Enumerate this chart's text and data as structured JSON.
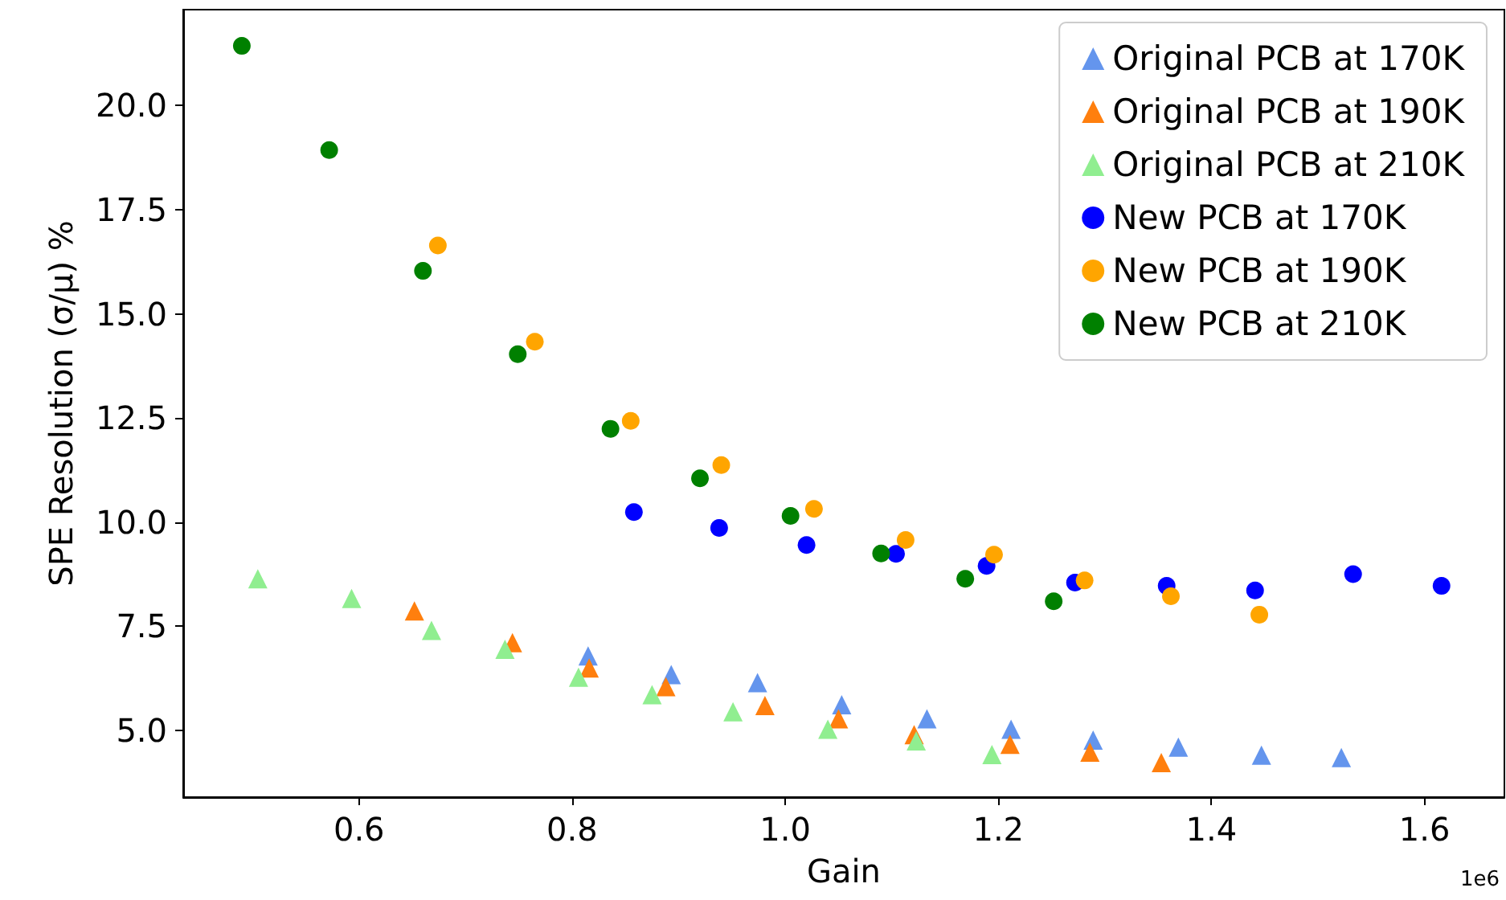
{
  "chart_data": {
    "type": "scatter",
    "xlabel": "Gain",
    "ylabel": "SPE Resolution (σ/μ) %",
    "annotations": [
      "1e6"
    ],
    "xlim": [
      0.435,
      1.675
    ],
    "xticks": [
      {
        "value": 0.6,
        "label": "0.6"
      },
      {
        "value": 0.8,
        "label": "0.8"
      },
      {
        "value": 1.0,
        "label": "1.0"
      },
      {
        "value": 1.2,
        "label": "1.2"
      },
      {
        "value": 1.4,
        "label": "1.4"
      },
      {
        "value": 1.6,
        "label": "1.6"
      }
    ],
    "ylim": [
      3.4,
      22.3
    ],
    "yticks": [
      {
        "value": 5,
        "label": "5.0"
      },
      {
        "value": 7.5,
        "label": "7.5"
      },
      {
        "value": 10,
        "label": "10.0"
      },
      {
        "value": 12.5,
        "label": "12.5"
      },
      {
        "value": 15,
        "label": "15.0"
      },
      {
        "value": 17.5,
        "label": "17.5"
      },
      {
        "value": 20,
        "label": "20.0"
      }
    ],
    "grid": false,
    "legend": "top right",
    "series": [
      {
        "name": "Original PCB at 170K",
        "color": "#6495ed",
        "marker": "triangle",
        "x": [
          0.815,
          0.893,
          0.974,
          1.053,
          1.133,
          1.212,
          1.289,
          1.369,
          1.447,
          1.522
        ],
        "values": [
          6.79,
          6.34,
          6.15,
          5.62,
          5.28,
          5.03,
          4.77,
          4.6,
          4.41,
          4.35
        ]
      },
      {
        "name": "Original PCB at 190K",
        "color": "#ff7f0e",
        "marker": "triangle",
        "x": [
          0.652,
          0.744,
          0.816,
          0.888,
          0.981,
          1.05,
          1.121,
          1.211,
          1.286,
          1.353
        ],
        "values": [
          7.87,
          7.11,
          6.5,
          6.05,
          5.6,
          5.28,
          4.9,
          4.67,
          4.48,
          4.23
        ]
      },
      {
        "name": "Original PCB at 210K",
        "color": "#90ee90",
        "marker": "triangle",
        "x": [
          0.505,
          0.593,
          0.668,
          0.737,
          0.806,
          0.875,
          0.951,
          1.04,
          1.123,
          1.194
        ],
        "values": [
          8.64,
          8.17,
          7.4,
          6.95,
          6.28,
          5.86,
          5.45,
          5.03,
          4.75,
          4.42
        ]
      },
      {
        "name": "New PCB at 170K",
        "color": "#0000ff",
        "marker": "circle",
        "x": [
          0.858,
          0.938,
          1.02,
          1.104,
          1.189,
          1.272,
          1.358,
          1.441,
          1.533,
          1.616
        ],
        "values": [
          10.24,
          9.86,
          9.45,
          9.24,
          8.95,
          8.55,
          8.47,
          8.36,
          8.75,
          8.47
        ]
      },
      {
        "name": "New PCB at 190K",
        "color": "#ffa500",
        "marker": "circle",
        "x": [
          0.674,
          0.765,
          0.855,
          0.94,
          1.027,
          1.113,
          1.196,
          1.281,
          1.362,
          1.445
        ],
        "values": [
          16.64,
          14.33,
          12.43,
          11.37,
          10.32,
          9.57,
          9.22,
          8.6,
          8.22,
          7.78
        ]
      },
      {
        "name": "New PCB at 210K",
        "color": "#008000",
        "marker": "circle",
        "x": [
          0.49,
          0.572,
          0.66,
          0.749,
          0.836,
          0.92,
          1.005,
          1.09,
          1.169,
          1.252
        ],
        "values": [
          21.43,
          18.93,
          16.03,
          14.03,
          12.24,
          11.05,
          10.15,
          9.25,
          8.64,
          8.1
        ]
      }
    ]
  }
}
